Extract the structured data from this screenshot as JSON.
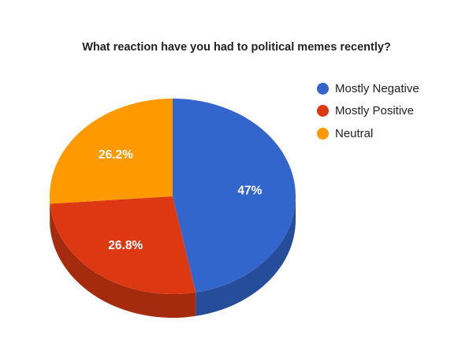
{
  "chart_data": {
    "type": "pie",
    "title": "What reaction have you had to political memes recently?",
    "categories": [
      "Mostly Negative",
      "Mostly Positive",
      "Neutral"
    ],
    "values": [
      47,
      26.8,
      26.2
    ],
    "labels": [
      "47%",
      "26.8%",
      "26.2%"
    ],
    "colors": [
      "#3366cc",
      "#dc3912",
      "#ff9900"
    ],
    "side_colors": [
      "#264d99",
      "#a52b0e",
      "#bf7300"
    ],
    "legend_position": "right",
    "is_3d": true
  },
  "legend": {
    "items": [
      {
        "label": "Mostly Negative",
        "color": "#3366cc"
      },
      {
        "label": "Mostly Positive",
        "color": "#dc3912"
      },
      {
        "label": "Neutral",
        "color": "#ff9900"
      }
    ]
  }
}
